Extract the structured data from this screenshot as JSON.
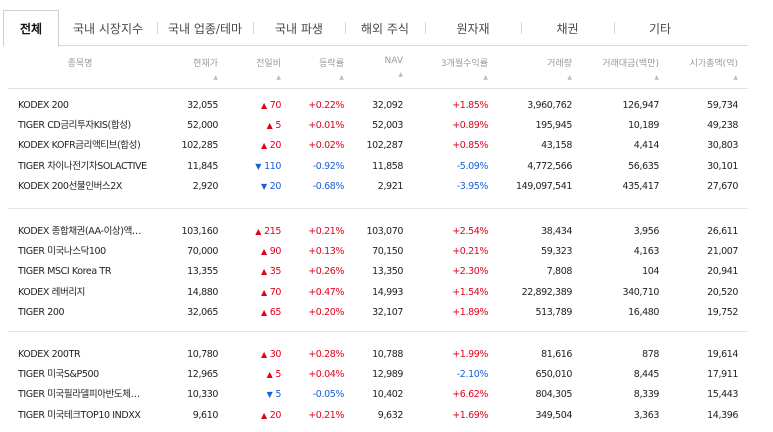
{
  "tabs": [
    {
      "label": "전체",
      "active": true
    },
    {
      "label": "국내 시장지수",
      "active": false
    },
    {
      "label": "국내 업종/테마",
      "active": false
    },
    {
      "label": "국내 파생",
      "active": false
    },
    {
      "label": "해외 주식",
      "active": false
    },
    {
      "label": "원자재",
      "active": false
    },
    {
      "label": "채권",
      "active": false
    },
    {
      "label": "기타",
      "active": false
    }
  ],
  "columns": {
    "name": "종목명",
    "price": "현재가",
    "change": "전일비",
    "rate": "등락률",
    "nav": "NAV",
    "return3m": "3개월수익률",
    "volume": "거래량",
    "amount": "거래대금(백만)",
    "market_cap": "시가총액(억)",
    "sort_icon": "sort-up-icon"
  },
  "colors": {
    "up": "#e2001a",
    "down": "#1a5fd6"
  },
  "groups": [
    [
      {
        "name": "KODEX 200",
        "price": "32,055",
        "dir": "up",
        "change": "70",
        "rate": "+0.22%",
        "nav": "32,092",
        "return3m": "+1.85%",
        "volume": "3,960,762",
        "amount": "126,947",
        "market_cap": "59,734"
      },
      {
        "name": "TIGER CD금리투자KIS(합성)",
        "price": "52,000",
        "dir": "up",
        "change": "5",
        "rate": "+0.01%",
        "nav": "52,003",
        "return3m": "+0.89%",
        "volume": "195,945",
        "amount": "10,189",
        "market_cap": "49,238"
      },
      {
        "name": "KODEX KOFR금리액티브(합성)",
        "price": "102,285",
        "dir": "up",
        "change": "20",
        "rate": "+0.02%",
        "nav": "102,287",
        "return3m": "+0.85%",
        "volume": "43,158",
        "amount": "4,414",
        "market_cap": "30,803"
      },
      {
        "name": "TIGER 차이나전기차SOLACTIVE",
        "price": "11,845",
        "dir": "down",
        "change": "110",
        "rate": "-0.92%",
        "nav": "11,858",
        "return3m": "-5.09%",
        "volume": "4,772,566",
        "amount": "56,635",
        "market_cap": "30,101"
      },
      {
        "name": "KODEX 200선물인버스2X",
        "price": "2,920",
        "dir": "down",
        "change": "20",
        "rate": "-0.68%",
        "nav": "2,921",
        "return3m": "-3.95%",
        "volume": "149,097,541",
        "amount": "435,417",
        "market_cap": "27,670"
      }
    ],
    [
      {
        "name": "KODEX 종합채권(AA-이상)액…",
        "price": "103,160",
        "dir": "up",
        "change": "215",
        "rate": "+0.21%",
        "nav": "103,070",
        "return3m": "+2.54%",
        "volume": "38,434",
        "amount": "3,956",
        "market_cap": "26,611"
      },
      {
        "name": "TIGER 미국나스닥100",
        "price": "70,000",
        "dir": "up",
        "change": "90",
        "rate": "+0.13%",
        "nav": "70,150",
        "return3m": "+0.21%",
        "volume": "59,323",
        "amount": "4,163",
        "market_cap": "21,007"
      },
      {
        "name": "TIGER MSCI Korea TR",
        "price": "13,355",
        "dir": "up",
        "change": "35",
        "rate": "+0.26%",
        "nav": "13,350",
        "return3m": "+2.30%",
        "volume": "7,808",
        "amount": "104",
        "market_cap": "20,941"
      },
      {
        "name": "KODEX 레버리지",
        "price": "14,880",
        "dir": "up",
        "change": "70",
        "rate": "+0.47%",
        "nav": "14,993",
        "return3m": "+1.54%",
        "volume": "22,892,389",
        "amount": "340,710",
        "market_cap": "20,520"
      },
      {
        "name": "TIGER 200",
        "price": "32,065",
        "dir": "up",
        "change": "65",
        "rate": "+0.20%",
        "nav": "32,107",
        "return3m": "+1.89%",
        "volume": "513,789",
        "amount": "16,480",
        "market_cap": "19,752"
      }
    ],
    [
      {
        "name": "KODEX 200TR",
        "price": "10,780",
        "dir": "up",
        "change": "30",
        "rate": "+0.28%",
        "nav": "10,788",
        "return3m": "+1.99%",
        "volume": "81,616",
        "amount": "878",
        "market_cap": "19,614"
      },
      {
        "name": "TIGER 미국S&P500",
        "price": "12,965",
        "dir": "up",
        "change": "5",
        "rate": "+0.04%",
        "nav": "12,989",
        "return3m": "-2.10%",
        "volume": "650,010",
        "amount": "8,445",
        "market_cap": "17,911"
      },
      {
        "name": "TIGER 미국필라델피아반도체…",
        "price": "10,330",
        "dir": "down",
        "change": "5",
        "rate": "-0.05%",
        "nav": "10,402",
        "return3m": "+6.62%",
        "volume": "804,305",
        "amount": "8,339",
        "market_cap": "15,443"
      },
      {
        "name": "TIGER 미국테크TOP10 INDXX",
        "price": "9,610",
        "dir": "up",
        "change": "20",
        "rate": "+0.21%",
        "nav": "9,632",
        "return3m": "+1.69%",
        "volume": "349,504",
        "amount": "3,363",
        "market_cap": "14,396"
      }
    ]
  ]
}
